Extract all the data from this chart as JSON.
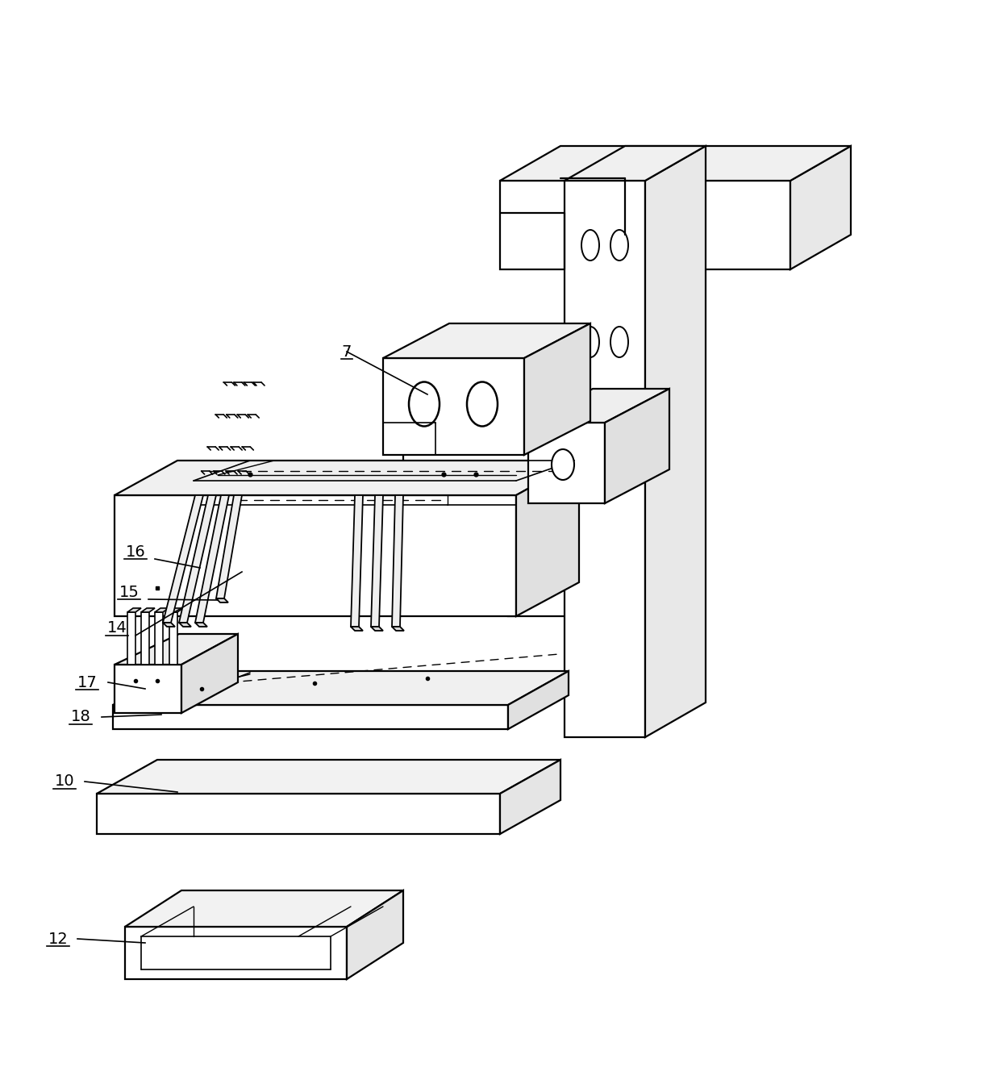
{
  "bg_color": "#ffffff",
  "line_color": "#000000",
  "line_width": 1.6,
  "fig_width": 12.4,
  "fig_height": 13.44,
  "dpi": 100
}
